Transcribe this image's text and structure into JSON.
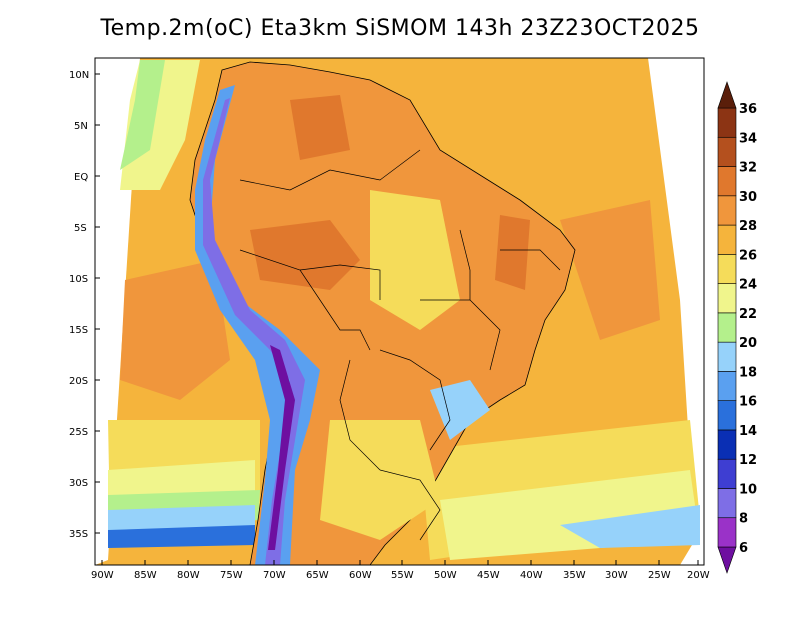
{
  "title": "Temp.2m(oC) Eta3km SiSMOM 143h 23Z23OCT2025",
  "map": {
    "lat_labels": [
      "10N",
      "5N",
      "EQ",
      "5S",
      "10S",
      "15S",
      "20S",
      "25S",
      "30S",
      "35S"
    ],
    "lon_labels": [
      "90W",
      "85W",
      "80W",
      "75W",
      "70W",
      "65W",
      "60W",
      "55W",
      "50W",
      "45W",
      "40W",
      "35W",
      "30W",
      "25W",
      "20W"
    ]
  },
  "colorbar": {
    "labels": [
      "6",
      "8",
      "10",
      "12",
      "14",
      "16",
      "18",
      "20",
      "22",
      "24",
      "26",
      "28",
      "30",
      "32",
      "34",
      "36"
    ],
    "colors": [
      "#6e0fa0",
      "#9a32c8",
      "#7e6ee6",
      "#3e3ed2",
      "#0a2fb4",
      "#2a70dc",
      "#5aa0f0",
      "#96d2fa",
      "#b4f08c",
      "#f0f58c",
      "#f5dc5a",
      "#f5b43c",
      "#f0963c",
      "#e0782d",
      "#b4501e",
      "#8c3414",
      "#5a1e0a"
    ]
  }
}
